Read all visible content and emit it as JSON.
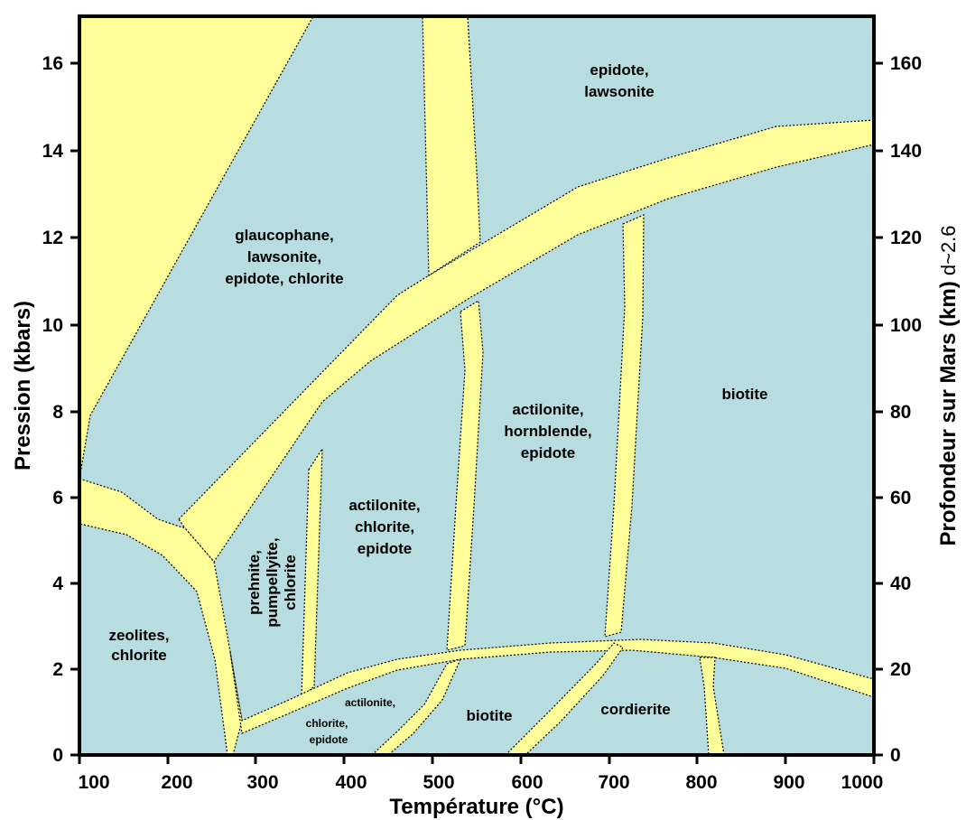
{
  "axes": {
    "x_title": "Température (°C)",
    "y_left_title": "Pression (kbars)",
    "y_right_title": "Profondeur sur Mars (km)",
    "y_right_title_suffix": "d~2.6",
    "x_ticks": [
      "100",
      "200",
      "300",
      "400",
      "500",
      "600",
      "700",
      "800",
      "900",
      "1000"
    ],
    "y_left_ticks": [
      "0",
      "2",
      "4",
      "6",
      "8",
      "10",
      "12",
      "14",
      "16"
    ],
    "y_right_ticks": [
      "0",
      "20",
      "40",
      "60",
      "80",
      "100",
      "120",
      "140",
      "160"
    ]
  },
  "zones": {
    "zeolites": [
      "zeolites,",
      "chlorite"
    ],
    "prehnite": [
      "prehnite,",
      "pumpellyite,",
      "chlorite"
    ],
    "glaucophane": [
      "glaucophane,",
      "lawsonite,",
      "epidote, chlorite"
    ],
    "epidote_lawsonite": [
      "epidote,",
      "lawsonite"
    ],
    "actilonite_chlorite": [
      "actilonite,",
      "chlorite,",
      "epidote"
    ],
    "actilonite_hornblende": [
      "actilonite,",
      "hornblende,",
      "epidote"
    ],
    "biotite_high": "biotite",
    "actilonite_low": [
      "actilonite,",
      "chlorite,",
      "epidote"
    ],
    "biotite_low": "biotite",
    "cordierite": "cordierite"
  },
  "colors": {
    "field": "#b8dde1",
    "band": "#ffff99",
    "frame": "#000000"
  }
}
